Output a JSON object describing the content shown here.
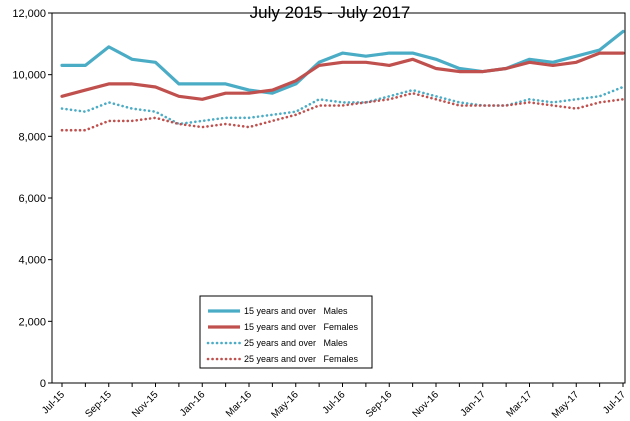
{
  "chart_data": {
    "type": "line",
    "title": "July 2015 - July 2017",
    "xlabel": "",
    "ylabel": "",
    "ylim": [
      0,
      12000
    ],
    "y_ticks": [
      0,
      2000,
      4000,
      6000,
      8000,
      10000,
      12000
    ],
    "y_tick_labels": [
      "0",
      "2,000",
      "4,000",
      "6,000",
      "8,000",
      "10,000",
      "12,000"
    ],
    "grid": false,
    "legend_position": "bottom-left",
    "categories": [
      "Jul-15",
      "Aug-15",
      "Sep-15",
      "Oct-15",
      "Nov-15",
      "Dec-15",
      "Jan-16",
      "Feb-16",
      "Mar-16",
      "Apr-16",
      "May-16",
      "Jun-16",
      "Jul-16",
      "Aug-16",
      "Sep-16",
      "Oct-16",
      "Nov-16",
      "Dec-16",
      "Jan-17",
      "Feb-17",
      "Mar-17",
      "Apr-17",
      "May-17",
      "Jun-17",
      "Jul-17"
    ],
    "x_tick_labels": [
      "Jul-15",
      "",
      "Sep-15",
      "",
      "Nov-15",
      "",
      "Jan-16",
      "",
      "Mar-16",
      "",
      "May-16",
      "",
      "Jul-16",
      "",
      "Sep-16",
      "",
      "Nov-16",
      "",
      "Jan-17",
      "",
      "Mar-17",
      "",
      "May-17",
      "",
      "Jul-17"
    ],
    "series": [
      {
        "name": "15 years and over   Males",
        "color": "#4bacc6",
        "style": "solid",
        "values": [
          10300,
          10300,
          10900,
          10500,
          10400,
          9700,
          9700,
          9700,
          9500,
          9400,
          9700,
          10400,
          10700,
          10600,
          10700,
          10700,
          10500,
          10200,
          10100,
          10200,
          10500,
          10400,
          10600,
          10800,
          11400
        ]
      },
      {
        "name": "15 years and over   Females",
        "color": "#c0504d",
        "style": "solid",
        "values": [
          9300,
          9500,
          9700,
          9700,
          9600,
          9300,
          9200,
          9400,
          9400,
          9500,
          9800,
          10300,
          10400,
          10400,
          10300,
          10500,
          10200,
          10100,
          10100,
          10200,
          10400,
          10300,
          10400,
          10700,
          10700
        ]
      },
      {
        "name": "25 years and over   Males",
        "color": "#4bacc6",
        "style": "dotted",
        "values": [
          8900,
          8800,
          9100,
          8900,
          8800,
          8400,
          8500,
          8600,
          8600,
          8700,
          8800,
          9200,
          9100,
          9100,
          9300,
          9500,
          9300,
          9100,
          9000,
          9000,
          9200,
          9100,
          9200,
          9300,
          9600
        ]
      },
      {
        "name": "25 years and over   Females",
        "color": "#c0504d",
        "style": "dotted",
        "values": [
          8200,
          8200,
          8500,
          8500,
          8600,
          8400,
          8300,
          8400,
          8300,
          8500,
          8700,
          9000,
          9000,
          9100,
          9200,
          9400,
          9200,
          9000,
          9000,
          9000,
          9100,
          9000,
          8900,
          9100,
          9200
        ]
      }
    ]
  }
}
